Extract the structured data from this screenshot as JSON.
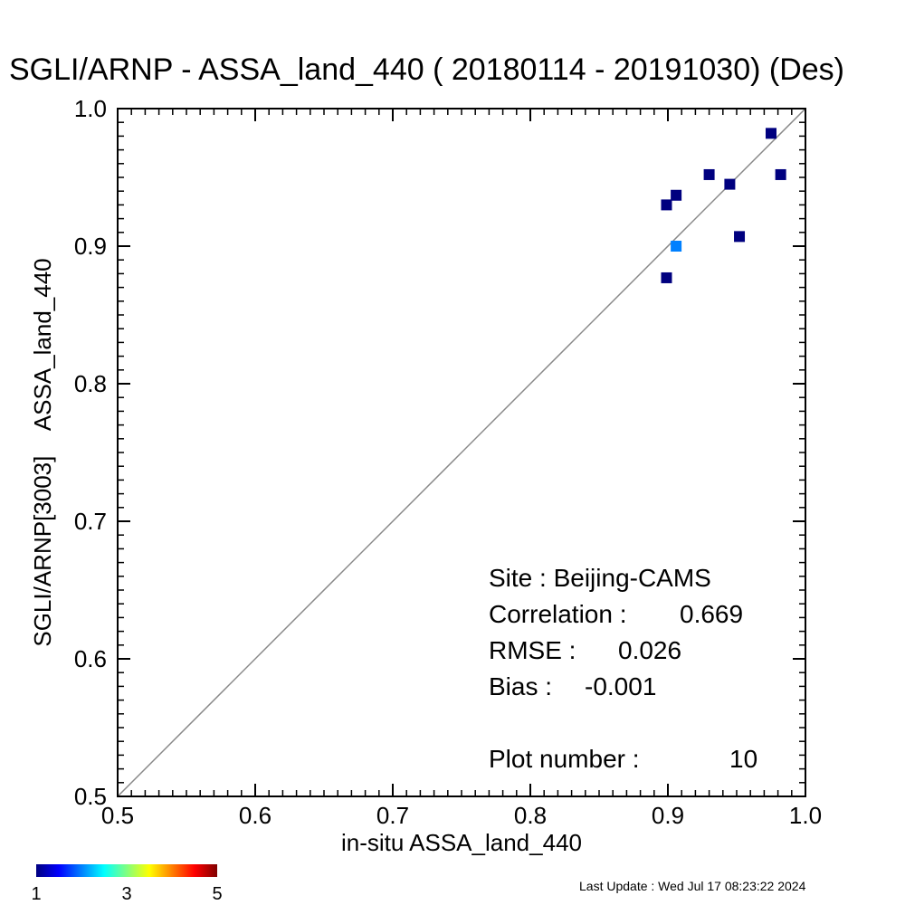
{
  "chart_data": {
    "type": "scatter",
    "title": "SGLI/ARNP - ASSA_land_440 ( 20180114 - 20191030) (Des)",
    "xlabel": "in-situ ASSA_land_440",
    "ylabel": "SGLI/ARNP[3003]    ASSA_land_440",
    "xlim": [
      0.5,
      1.0
    ],
    "ylim": [
      0.5,
      1.0
    ],
    "x_ticks": [
      "0.5",
      "0.6",
      "0.7",
      "0.8",
      "0.9",
      "1.0"
    ],
    "y_ticks": [
      "0.5",
      "0.6",
      "0.7",
      "0.8",
      "0.9",
      "1.0"
    ],
    "one_to_one_line": true,
    "grid": false,
    "points": [
      {
        "x": 0.975,
        "y": 0.982,
        "count": 1
      },
      {
        "x": 0.93,
        "y": 0.952,
        "count": 1
      },
      {
        "x": 0.982,
        "y": 0.952,
        "count": 1
      },
      {
        "x": 0.945,
        "y": 0.945,
        "count": 1
      },
      {
        "x": 0.906,
        "y": 0.937,
        "count": 1
      },
      {
        "x": 0.899,
        "y": 0.93,
        "count": 1
      },
      {
        "x": 0.952,
        "y": 0.907,
        "count": 1
      },
      {
        "x": 0.906,
        "y": 0.9,
        "count": 2
      },
      {
        "x": 0.899,
        "y": 0.877,
        "count": 1
      }
    ],
    "stats": {
      "site": "Site : Beijing-CAMS",
      "correlation_label": "Correlation :",
      "correlation": "0.669",
      "rmse_label": "RMSE :",
      "rmse": "0.026",
      "bias_label": "Bias :",
      "bias": "-0.001",
      "plot_number_label": "Plot number :",
      "plot_number": "10"
    },
    "colorbar": {
      "min_label": "1",
      "mid_label": "3",
      "max_label": "5",
      "range": [
        1,
        5
      ],
      "colors": [
        "#00007f",
        "#0000ff",
        "#0080ff",
        "#00ffff",
        "#80ff80",
        "#ffff00",
        "#ff8000",
        "#ff0000",
        "#7f0000"
      ]
    },
    "line_color": "#888888"
  },
  "footer": {
    "last_update": "Last Update : Wed Jul 17 08:23:22 2024"
  }
}
